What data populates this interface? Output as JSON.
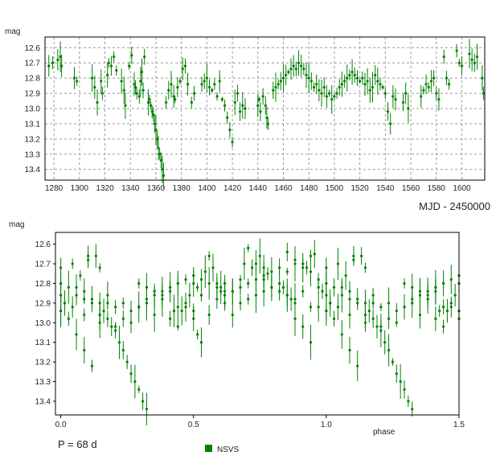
{
  "chart_data": [
    {
      "type": "scatter",
      "ylabel": "mag",
      "xlabel": "MJD - 2450000",
      "xlim": [
        1273,
        1618
      ],
      "ylim": [
        12.53,
        13.47
      ],
      "y_inverted": true,
      "grid": true,
      "x_ticks": [
        "1280",
        "1300",
        "1320",
        "1340",
        "1360",
        "1380",
        "1400",
        "1420",
        "1440",
        "1460",
        "1480",
        "1500",
        "1520",
        "1540",
        "1560",
        "1580",
        "1600"
      ],
      "y_ticks": [
        "12.6",
        "12.7",
        "12.8",
        "12.9",
        "13.0",
        "13.1",
        "13.2",
        "13.3",
        "13.4"
      ],
      "series": [
        {
          "color": "#008000",
          "points": [
            [
              1276,
              12.72
            ],
            [
              1279,
              12.7
            ],
            [
              1283,
              12.68
            ],
            [
              1285,
              12.66
            ],
            [
              1286,
              12.72
            ],
            [
              1296,
              12.8
            ],
            [
              1298,
              12.82
            ],
            [
              1310,
              12.8
            ],
            [
              1312,
              12.86
            ],
            [
              1314,
              12.96
            ],
            [
              1317,
              12.82
            ],
            [
              1318,
              12.9
            ],
            [
              1322,
              12.78
            ],
            [
              1323,
              12.7
            ],
            [
              1325,
              12.72
            ],
            [
              1327,
              12.66
            ],
            [
              1329,
              12.75
            ],
            [
              1333,
              12.82
            ],
            [
              1335,
              12.88
            ],
            [
              1336,
              12.98
            ],
            [
              1339,
              12.72
            ],
            [
              1341,
              12.65
            ],
            [
              1343,
              12.84
            ],
            [
              1344,
              12.86
            ],
            [
              1345,
              12.9
            ],
            [
              1347,
              12.92
            ],
            [
              1348,
              12.82
            ],
            [
              1349,
              12.76
            ],
            [
              1350,
              12.88
            ],
            [
              1351,
              12.66
            ],
            [
              1354,
              12.96
            ],
            [
              1355,
              12.94
            ],
            [
              1356,
              12.98
            ],
            [
              1357,
              13.02
            ],
            [
              1358,
              13.04
            ],
            [
              1359,
              13.1
            ],
            [
              1360,
              13.14
            ],
            [
              1361,
              13.2
            ],
            [
              1362,
              13.26
            ],
            [
              1363,
              13.3
            ],
            [
              1364,
              13.34
            ],
            [
              1365,
              13.4
            ],
            [
              1366,
              13.44
            ],
            [
              1368,
              12.96
            ],
            [
              1370,
              12.88
            ],
            [
              1372,
              12.84
            ],
            [
              1374,
              12.92
            ],
            [
              1375,
              12.94
            ],
            [
              1377,
              12.86
            ],
            [
              1379,
              12.82
            ],
            [
              1381,
              12.74
            ],
            [
              1383,
              12.72
            ],
            [
              1385,
              12.84
            ],
            [
              1388,
              12.96
            ],
            [
              1390,
              12.9
            ],
            [
              1396,
              12.84
            ],
            [
              1398,
              12.82
            ],
            [
              1400,
              12.8
            ],
            [
              1402,
              12.86
            ],
            [
              1404,
              12.88
            ],
            [
              1406,
              12.84
            ],
            [
              1408,
              12.92
            ],
            [
              1410,
              12.82
            ],
            [
              1412,
              12.94
            ],
            [
              1414,
              12.98
            ],
            [
              1416,
              13.06
            ],
            [
              1418,
              13.14
            ],
            [
              1420,
              13.22
            ],
            [
              1422,
              12.96
            ],
            [
              1424,
              12.9
            ],
            [
              1426,
              13.02
            ],
            [
              1428,
              12.98
            ],
            [
              1430,
              13.0
            ],
            [
              1440,
              12.98
            ],
            [
              1441,
              12.94
            ],
            [
              1442,
              13.02
            ],
            [
              1444,
              12.92
            ],
            [
              1446,
              12.98
            ],
            [
              1447,
              13.06
            ],
            [
              1448,
              13.1
            ],
            [
              1452,
              12.88
            ],
            [
              1454,
              12.86
            ],
            [
              1456,
              12.84
            ],
            [
              1458,
              12.82
            ],
            [
              1460,
              12.8
            ],
            [
              1462,
              12.78
            ],
            [
              1464,
              12.76
            ],
            [
              1466,
              12.74
            ],
            [
              1468,
              12.72
            ],
            [
              1470,
              12.74
            ],
            [
              1472,
              12.7
            ],
            [
              1474,
              12.72
            ],
            [
              1476,
              12.74
            ],
            [
              1478,
              12.78
            ],
            [
              1480,
              12.8
            ],
            [
              1482,
              12.82
            ],
            [
              1484,
              12.86
            ],
            [
              1486,
              12.84
            ],
            [
              1488,
              12.88
            ],
            [
              1490,
              12.9
            ],
            [
              1492,
              12.86
            ],
            [
              1494,
              12.92
            ],
            [
              1496,
              12.9
            ],
            [
              1498,
              12.94
            ],
            [
              1500,
              12.92
            ],
            [
              1502,
              12.9
            ],
            [
              1504,
              12.86
            ],
            [
              1506,
              12.84
            ],
            [
              1508,
              12.82
            ],
            [
              1510,
              12.8
            ],
            [
              1512,
              12.78
            ],
            [
              1514,
              12.76
            ],
            [
              1516,
              12.78
            ],
            [
              1518,
              12.8
            ],
            [
              1520,
              12.82
            ],
            [
              1522,
              12.8
            ],
            [
              1524,
              12.84
            ],
            [
              1526,
              12.82
            ],
            [
              1528,
              12.88
            ],
            [
              1530,
              12.86
            ],
            [
              1532,
              12.78
            ],
            [
              1534,
              12.82
            ],
            [
              1536,
              12.84
            ],
            [
              1538,
              12.86
            ],
            [
              1540,
              12.9
            ],
            [
              1542,
              13.02
            ],
            [
              1544,
              13.1
            ],
            [
              1546,
              12.92
            ],
            [
              1548,
              12.94
            ],
            [
              1554,
              12.96
            ],
            [
              1556,
              12.9
            ],
            [
              1558,
              13.0
            ],
            [
              1568,
              12.92
            ],
            [
              1570,
              12.88
            ],
            [
              1572,
              12.84
            ],
            [
              1574,
              12.86
            ],
            [
              1576,
              12.82
            ],
            [
              1578,
              12.8
            ],
            [
              1580,
              12.9
            ],
            [
              1582,
              12.94
            ],
            [
              1586,
              12.66
            ],
            [
              1588,
              12.8
            ],
            [
              1590,
              12.84
            ],
            [
              1596,
              12.62
            ],
            [
              1598,
              12.7
            ],
            [
              1600,
              12.72
            ],
            [
              1606,
              12.64
            ],
            [
              1608,
              12.68
            ],
            [
              1610,
              12.7
            ],
            [
              1612,
              12.66
            ],
            [
              1616,
              12.8
            ],
            [
              1617,
              12.9
            ]
          ]
        }
      ]
    },
    {
      "type": "scatter",
      "ylabel": "mag",
      "xlabel": "phase",
      "xlim": [
        -0.02,
        1.5
      ],
      "ylim": [
        12.54,
        13.47
      ],
      "y_inverted": true,
      "grid": false,
      "x_ticks": [
        "0.0",
        "0.5",
        "1.0",
        "1.5"
      ],
      "y_ticks": [
        "12.6",
        "12.7",
        "12.8",
        "12.9",
        "13.0",
        "13.1",
        "13.2",
        "13.3",
        "13.4"
      ],
      "series": [
        {
          "name": "NSVS",
          "color": "#008000"
        }
      ]
    }
  ],
  "period_label": "P = 68 d",
  "legend": {
    "label": "NSVS",
    "color": "#008000"
  }
}
